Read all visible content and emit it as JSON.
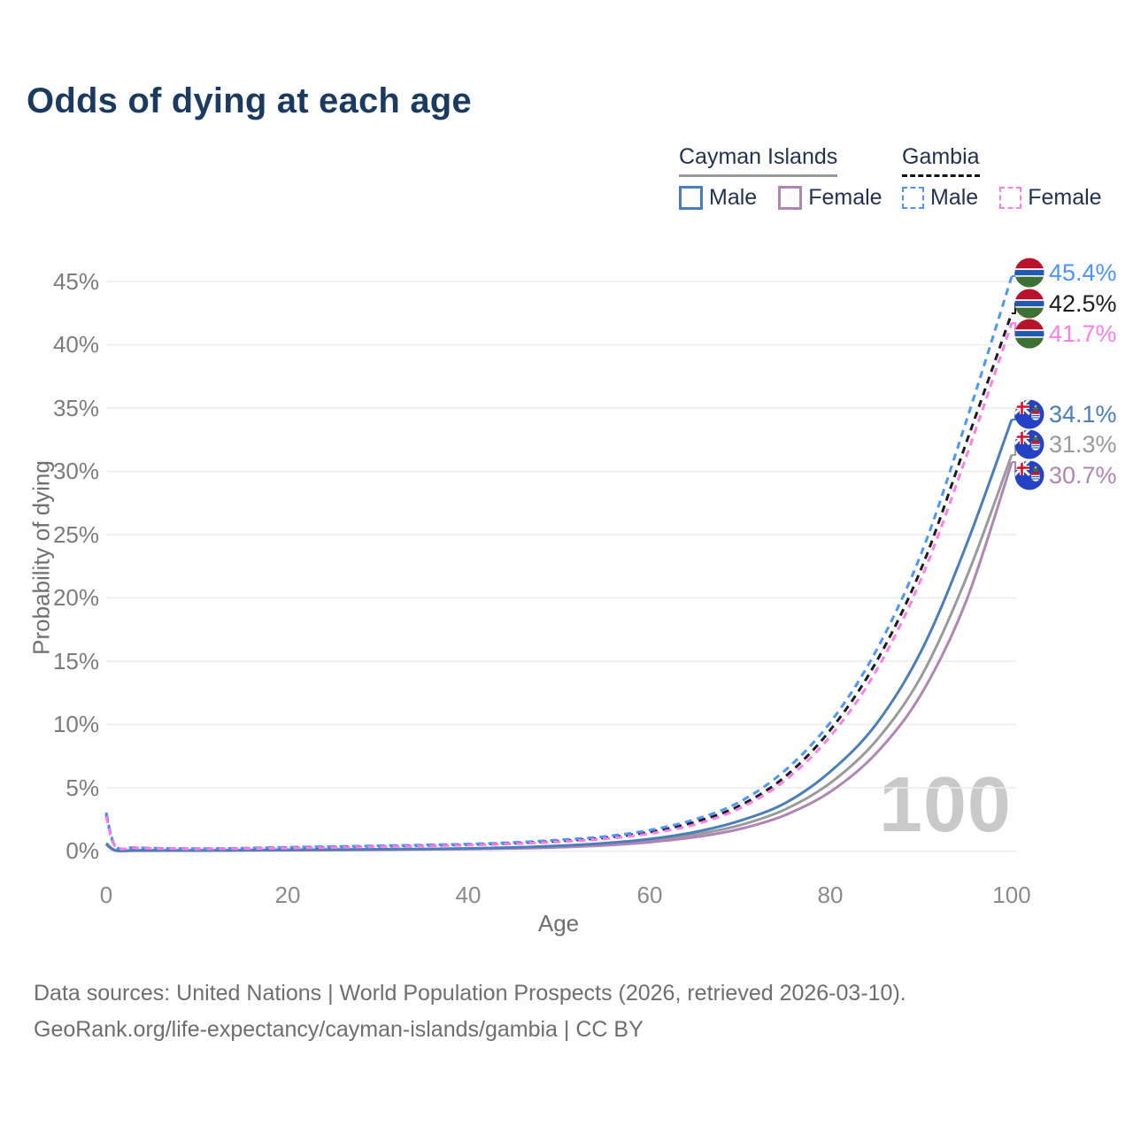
{
  "title": "Odds of dying at each age",
  "legend": {
    "groups": [
      {
        "label": "Cayman Islands",
        "underline_style": "solid",
        "underline_color": "#9a9a9a",
        "items": [
          {
            "label": "Male",
            "color": "#4a7ebb",
            "dashed": false
          },
          {
            "label": "Female",
            "color": "#b184b6",
            "dashed": false
          }
        ]
      },
      {
        "label": "Gambia",
        "underline_style": "dashed",
        "underline_color": "#141414",
        "items": [
          {
            "label": "Male",
            "color": "#4e95fa",
            "dashed": true
          },
          {
            "label": "Female",
            "color": "#fc7ee8",
            "dashed": true
          }
        ]
      }
    ]
  },
  "chart_data": {
    "type": "line",
    "title": "Odds of dying at each age",
    "xlabel": "Age",
    "ylabel": "Probability of dying",
    "xlim": [
      0,
      100
    ],
    "ylim": [
      0,
      47
    ],
    "x_ticks": [
      "0",
      "20",
      "40",
      "60",
      "80",
      "100"
    ],
    "y_ticks": [
      "0%",
      "5%",
      "10%",
      "15%",
      "20%",
      "25%",
      "30%",
      "35%",
      "40%",
      "45%"
    ],
    "grid": "horizontal",
    "legend_position": "top-right",
    "watermark": "100",
    "series": [
      {
        "name": "Cayman Islands (all)",
        "color": "#9a9a9a",
        "dash": false,
        "points": [
          [
            0,
            0.56
          ],
          [
            1,
            0.05
          ],
          [
            3,
            0.04
          ],
          [
            5,
            0.04
          ],
          [
            10,
            0.04
          ],
          [
            15,
            0.06
          ],
          [
            20,
            0.08
          ],
          [
            25,
            0.1
          ],
          [
            30,
            0.12
          ],
          [
            35,
            0.15
          ],
          [
            40,
            0.18
          ],
          [
            45,
            0.25
          ],
          [
            50,
            0.36
          ],
          [
            55,
            0.53
          ],
          [
            60,
            0.82
          ],
          [
            65,
            1.3
          ],
          [
            70,
            2.05
          ],
          [
            75,
            3.3
          ],
          [
            80,
            5.4
          ],
          [
            85,
            8.7
          ],
          [
            90,
            13.8
          ],
          [
            95,
            21.6
          ],
          [
            100,
            31.3
          ]
        ]
      },
      {
        "name": "Cayman Islands Female",
        "color": "#b184b6",
        "dash": false,
        "points": [
          [
            0,
            0.5
          ],
          [
            1,
            0.04
          ],
          [
            3,
            0.03
          ],
          [
            5,
            0.03
          ],
          [
            10,
            0.04
          ],
          [
            15,
            0.05
          ],
          [
            20,
            0.06
          ],
          [
            25,
            0.08
          ],
          [
            30,
            0.1
          ],
          [
            35,
            0.13
          ],
          [
            40,
            0.16
          ],
          [
            45,
            0.21
          ],
          [
            50,
            0.3
          ],
          [
            55,
            0.45
          ],
          [
            60,
            0.7
          ],
          [
            65,
            1.1
          ],
          [
            70,
            1.75
          ],
          [
            75,
            2.85
          ],
          [
            80,
            4.7
          ],
          [
            85,
            7.7
          ],
          [
            90,
            12.4
          ],
          [
            95,
            19.8
          ],
          [
            100,
            30.7
          ]
        ]
      },
      {
        "name": "Cayman Islands Male",
        "color": "#4a7ebb",
        "dash": false,
        "points": [
          [
            0,
            0.62
          ],
          [
            1,
            0.06
          ],
          [
            3,
            0.05
          ],
          [
            5,
            0.05
          ],
          [
            10,
            0.05
          ],
          [
            15,
            0.07
          ],
          [
            20,
            0.1
          ],
          [
            25,
            0.12
          ],
          [
            30,
            0.14
          ],
          [
            35,
            0.17
          ],
          [
            40,
            0.21
          ],
          [
            45,
            0.29
          ],
          [
            50,
            0.42
          ],
          [
            55,
            0.62
          ],
          [
            60,
            0.95
          ],
          [
            65,
            1.5
          ],
          [
            70,
            2.4
          ],
          [
            75,
            3.8
          ],
          [
            80,
            6.3
          ],
          [
            85,
            10.0
          ],
          [
            90,
            15.8
          ],
          [
            95,
            24.2
          ],
          [
            100,
            34.1
          ]
        ]
      },
      {
        "name": "Gambia (all)",
        "color": "#1d1d1d",
        "dash": true,
        "points": [
          [
            0,
            2.9
          ],
          [
            1,
            0.38
          ],
          [
            3,
            0.26
          ],
          [
            5,
            0.22
          ],
          [
            10,
            0.18
          ],
          [
            15,
            0.21
          ],
          [
            20,
            0.27
          ],
          [
            25,
            0.33
          ],
          [
            30,
            0.38
          ],
          [
            35,
            0.44
          ],
          [
            40,
            0.51
          ],
          [
            45,
            0.62
          ],
          [
            50,
            0.8
          ],
          [
            55,
            1.05
          ],
          [
            60,
            1.5
          ],
          [
            65,
            2.3
          ],
          [
            70,
            3.6
          ],
          [
            75,
            5.9
          ],
          [
            80,
            9.6
          ],
          [
            85,
            14.9
          ],
          [
            90,
            22.3
          ],
          [
            95,
            32.3
          ],
          [
            100,
            42.5
          ]
        ]
      },
      {
        "name": "Gambia Male",
        "color": "#4e95fa",
        "dash": true,
        "points": [
          [
            0,
            3.05
          ],
          [
            1,
            0.4
          ],
          [
            3,
            0.28
          ],
          [
            5,
            0.24
          ],
          [
            10,
            0.19
          ],
          [
            15,
            0.23
          ],
          [
            20,
            0.3
          ],
          [
            25,
            0.36
          ],
          [
            30,
            0.42
          ],
          [
            35,
            0.48
          ],
          [
            40,
            0.56
          ],
          [
            45,
            0.68
          ],
          [
            50,
            0.88
          ],
          [
            55,
            1.15
          ],
          [
            60,
            1.65
          ],
          [
            65,
            2.5
          ],
          [
            70,
            3.9
          ],
          [
            75,
            6.4
          ],
          [
            80,
            10.2
          ],
          [
            85,
            15.8
          ],
          [
            90,
            23.5
          ],
          [
            95,
            34.0
          ],
          [
            100,
            45.4
          ]
        ]
      },
      {
        "name": "Gambia Female",
        "color": "#fc7ee8",
        "dash": true,
        "points": [
          [
            0,
            2.75
          ],
          [
            1,
            0.36
          ],
          [
            3,
            0.25
          ],
          [
            5,
            0.21
          ],
          [
            10,
            0.17
          ],
          [
            15,
            0.19
          ],
          [
            20,
            0.24
          ],
          [
            25,
            0.29
          ],
          [
            30,
            0.34
          ],
          [
            35,
            0.4
          ],
          [
            40,
            0.47
          ],
          [
            45,
            0.57
          ],
          [
            50,
            0.73
          ],
          [
            55,
            0.96
          ],
          [
            60,
            1.38
          ],
          [
            65,
            2.1
          ],
          [
            70,
            3.4
          ],
          [
            75,
            5.6
          ],
          [
            80,
            9.1
          ],
          [
            85,
            14.2
          ],
          [
            90,
            21.5
          ],
          [
            95,
            31.2
          ],
          [
            100,
            41.7
          ]
        ]
      }
    ]
  },
  "end_labels": [
    {
      "value": "45.4%",
      "series": "Gambia Male",
      "flag": "gambia",
      "color": "#4e95fa"
    },
    {
      "value": "42.5%",
      "series": "Gambia (all)",
      "flag": "gambia",
      "color": "#1d1d1d"
    },
    {
      "value": "41.7%",
      "series": "Gambia Female",
      "flag": "gambia",
      "color": "#fc7ee8"
    },
    {
      "value": "34.1%",
      "series": "Cayman Islands Male",
      "flag": "cayman-islands",
      "color": "#4a7ebb"
    },
    {
      "value": "31.3%",
      "series": "Cayman Islands (all)",
      "flag": "cayman-islands",
      "color": "#9a9a9a"
    },
    {
      "value": "30.7%",
      "series": "Cayman Islands Female",
      "flag": "cayman-islands",
      "color": "#b184b6"
    }
  ],
  "footer": {
    "line1": "Data sources: United Nations | World Population Prospects (2026, retrieved 2026-03-10).",
    "line2": "GeoRank.org/life-expectancy/cayman-islands/gambia | CC BY"
  }
}
